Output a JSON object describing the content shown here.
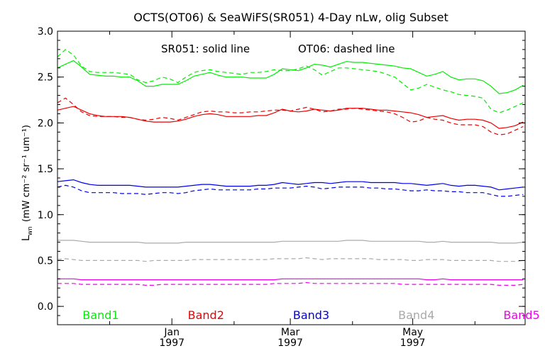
{
  "chart_data": {
    "type": "line",
    "title": "OCTS(OT06) & SeaWiFS(SR051) 4-Day nLw, olig Subset",
    "ylabel_main": "L",
    "ylabel_sub": "wn",
    "ylabel_units": "(mW cm⁻² sr⁻¹ um⁻¹)",
    "annotation_solid": "SR051: solid line",
    "annotation_dashed": "OT06: dashed line",
    "ylim": [
      -0.2,
      3.0
    ],
    "xlim": [
      "1996-11-05",
      "1997-06-26"
    ],
    "y_ticks": [
      "0.0",
      "0.5",
      "1.0",
      "1.5",
      "2.0",
      "2.5",
      "3.0"
    ],
    "x_ticks": [
      {
        "month": "Jan",
        "year": "1997",
        "date": "1997-01-01"
      },
      {
        "month": "Mar",
        "year": "1997",
        "date": "1997-03-01"
      },
      {
        "month": "May",
        "year": "1997",
        "date": "1997-05-01"
      }
    ],
    "grid": false,
    "x": [
      "1996-11-05",
      "1996-11-09",
      "1996-11-13",
      "1996-11-17",
      "1996-11-21",
      "1996-11-25",
      "1996-11-29",
      "1996-12-03",
      "1996-12-07",
      "1996-12-11",
      "1996-12-15",
      "1996-12-19",
      "1996-12-23",
      "1996-12-27",
      "1996-12-31",
      "1997-01-04",
      "1997-01-08",
      "1997-01-12",
      "1997-01-16",
      "1997-01-20",
      "1997-01-24",
      "1997-01-28",
      "1997-02-01",
      "1997-02-05",
      "1997-02-09",
      "1997-02-13",
      "1997-02-17",
      "1997-02-21",
      "1997-02-25",
      "1997-03-01",
      "1997-03-05",
      "1997-03-09",
      "1997-03-13",
      "1997-03-17",
      "1997-03-21",
      "1997-03-25",
      "1997-03-29",
      "1997-04-02",
      "1997-04-06",
      "1997-04-10",
      "1997-04-14",
      "1997-04-18",
      "1997-04-22",
      "1997-04-26",
      "1997-04-30",
      "1997-05-04",
      "1997-05-08",
      "1997-05-12",
      "1997-05-16",
      "1997-05-20",
      "1997-05-24",
      "1997-05-28",
      "1997-06-01",
      "1997-06-05",
      "1997-06-09",
      "1997-06-13",
      "1997-06-17",
      "1997-06-21",
      "1997-06-25"
    ],
    "series": [
      {
        "name": "Band1",
        "color": "#00ee00",
        "style": "solid",
        "values": [
          2.6,
          2.64,
          2.68,
          2.61,
          2.53,
          2.52,
          2.51,
          2.51,
          2.5,
          2.5,
          2.46,
          2.4,
          2.4,
          2.42,
          2.42,
          2.42,
          2.46,
          2.51,
          2.53,
          2.55,
          2.52,
          2.5,
          2.5,
          2.5,
          2.49,
          2.49,
          2.49,
          2.53,
          2.59,
          2.58,
          2.57,
          2.6,
          2.64,
          2.63,
          2.61,
          2.64,
          2.67,
          2.66,
          2.66,
          2.65,
          2.64,
          2.63,
          2.62,
          2.6,
          2.59,
          2.55,
          2.51,
          2.53,
          2.56,
          2.5,
          2.47,
          2.48,
          2.48,
          2.46,
          2.4,
          2.32,
          2.33,
          2.36,
          2.41
        ]
      },
      {
        "name": "Band1",
        "color": "#00ee00",
        "style": "dashed",
        "values": [
          2.72,
          2.8,
          2.74,
          2.62,
          2.56,
          2.55,
          2.55,
          2.55,
          2.54,
          2.53,
          2.47,
          2.44,
          2.46,
          2.5,
          2.48,
          2.44,
          2.5,
          2.55,
          2.57,
          2.58,
          2.56,
          2.55,
          2.54,
          2.53,
          2.55,
          2.55,
          2.56,
          2.58,
          2.57,
          2.57,
          2.59,
          2.62,
          2.58,
          2.52,
          2.56,
          2.6,
          2.6,
          2.59,
          2.58,
          2.57,
          2.56,
          2.53,
          2.5,
          2.43,
          2.36,
          2.38,
          2.42,
          2.39,
          2.36,
          2.34,
          2.31,
          2.3,
          2.29,
          2.27,
          2.15,
          2.11,
          2.14,
          2.18,
          2.22
        ]
      },
      {
        "name": "Band2",
        "color": "#ee0000",
        "style": "solid",
        "values": [
          2.14,
          2.16,
          2.18,
          2.14,
          2.1,
          2.08,
          2.07,
          2.07,
          2.07,
          2.06,
          2.04,
          2.02,
          2.01,
          2.01,
          2.01,
          2.02,
          2.04,
          2.07,
          2.09,
          2.1,
          2.09,
          2.07,
          2.07,
          2.07,
          2.07,
          2.08,
          2.08,
          2.11,
          2.15,
          2.13,
          2.12,
          2.13,
          2.15,
          2.14,
          2.13,
          2.14,
          2.16,
          2.16,
          2.16,
          2.15,
          2.14,
          2.14,
          2.13,
          2.12,
          2.11,
          2.09,
          2.06,
          2.07,
          2.08,
          2.05,
          2.03,
          2.04,
          2.04,
          2.03,
          2.0,
          1.94,
          1.95,
          1.97,
          2.01
        ]
      },
      {
        "name": "Band2",
        "color": "#ee0000",
        "style": "dashed",
        "values": [
          2.22,
          2.27,
          2.2,
          2.12,
          2.08,
          2.07,
          2.07,
          2.07,
          2.06,
          2.06,
          2.04,
          2.03,
          2.04,
          2.06,
          2.05,
          2.03,
          2.06,
          2.09,
          2.12,
          2.13,
          2.12,
          2.12,
          2.11,
          2.11,
          2.12,
          2.12,
          2.13,
          2.14,
          2.14,
          2.13,
          2.15,
          2.17,
          2.15,
          2.12,
          2.13,
          2.15,
          2.15,
          2.16,
          2.15,
          2.14,
          2.13,
          2.12,
          2.1,
          2.06,
          2.01,
          2.02,
          2.06,
          2.04,
          2.03,
          2.0,
          1.98,
          1.98,
          1.98,
          1.96,
          1.9,
          1.87,
          1.88,
          1.92,
          1.96
        ]
      },
      {
        "name": "Band3",
        "color": "#0000ee",
        "style": "solid",
        "values": [
          1.36,
          1.37,
          1.38,
          1.35,
          1.33,
          1.32,
          1.32,
          1.32,
          1.32,
          1.32,
          1.31,
          1.3,
          1.3,
          1.3,
          1.3,
          1.3,
          1.31,
          1.32,
          1.33,
          1.33,
          1.32,
          1.31,
          1.31,
          1.31,
          1.31,
          1.32,
          1.32,
          1.33,
          1.35,
          1.34,
          1.33,
          1.34,
          1.35,
          1.35,
          1.34,
          1.35,
          1.36,
          1.36,
          1.36,
          1.35,
          1.35,
          1.35,
          1.35,
          1.34,
          1.34,
          1.33,
          1.32,
          1.33,
          1.34,
          1.32,
          1.31,
          1.32,
          1.32,
          1.31,
          1.3,
          1.27,
          1.28,
          1.29,
          1.3
        ]
      },
      {
        "name": "Band3",
        "color": "#0000ee",
        "style": "dashed",
        "values": [
          1.3,
          1.32,
          1.3,
          1.26,
          1.24,
          1.24,
          1.24,
          1.24,
          1.23,
          1.23,
          1.23,
          1.22,
          1.23,
          1.24,
          1.24,
          1.23,
          1.24,
          1.26,
          1.27,
          1.28,
          1.27,
          1.27,
          1.27,
          1.27,
          1.27,
          1.28,
          1.28,
          1.29,
          1.29,
          1.29,
          1.3,
          1.31,
          1.3,
          1.28,
          1.29,
          1.3,
          1.3,
          1.3,
          1.3,
          1.29,
          1.29,
          1.28,
          1.28,
          1.27,
          1.26,
          1.26,
          1.27,
          1.26,
          1.26,
          1.25,
          1.25,
          1.24,
          1.24,
          1.24,
          1.22,
          1.2,
          1.2,
          1.21,
          1.22
        ]
      },
      {
        "name": "Band4",
        "color": "#aaaaaa",
        "style": "solid",
        "values": [
          0.72,
          0.72,
          0.72,
          0.71,
          0.7,
          0.7,
          0.7,
          0.7,
          0.7,
          0.7,
          0.7,
          0.69,
          0.69,
          0.69,
          0.69,
          0.69,
          0.7,
          0.7,
          0.7,
          0.7,
          0.7,
          0.7,
          0.7,
          0.7,
          0.7,
          0.7,
          0.7,
          0.7,
          0.71,
          0.71,
          0.71,
          0.71,
          0.71,
          0.71,
          0.71,
          0.71,
          0.72,
          0.72,
          0.72,
          0.71,
          0.71,
          0.71,
          0.71,
          0.71,
          0.71,
          0.71,
          0.7,
          0.7,
          0.71,
          0.7,
          0.7,
          0.7,
          0.7,
          0.7,
          0.7,
          0.69,
          0.69,
          0.69,
          0.7
        ]
      },
      {
        "name": "Band4",
        "color": "#aaaaaa",
        "style": "dashed",
        "values": [
          0.51,
          0.52,
          0.51,
          0.5,
          0.5,
          0.5,
          0.5,
          0.5,
          0.5,
          0.5,
          0.5,
          0.49,
          0.5,
          0.5,
          0.5,
          0.5,
          0.5,
          0.51,
          0.51,
          0.51,
          0.51,
          0.51,
          0.51,
          0.51,
          0.51,
          0.51,
          0.51,
          0.52,
          0.52,
          0.52,
          0.52,
          0.53,
          0.52,
          0.51,
          0.52,
          0.52,
          0.52,
          0.52,
          0.52,
          0.52,
          0.51,
          0.51,
          0.51,
          0.51,
          0.5,
          0.5,
          0.51,
          0.51,
          0.51,
          0.5,
          0.5,
          0.5,
          0.5,
          0.5,
          0.5,
          0.49,
          0.49,
          0.49,
          0.5
        ]
      },
      {
        "name": "Band5",
        "color": "#ee00ee",
        "style": "solid",
        "values": [
          0.3,
          0.3,
          0.3,
          0.29,
          0.29,
          0.29,
          0.29,
          0.29,
          0.29,
          0.29,
          0.29,
          0.29,
          0.29,
          0.29,
          0.29,
          0.29,
          0.29,
          0.29,
          0.29,
          0.29,
          0.29,
          0.29,
          0.29,
          0.29,
          0.29,
          0.29,
          0.29,
          0.29,
          0.3,
          0.3,
          0.3,
          0.3,
          0.3,
          0.3,
          0.3,
          0.3,
          0.3,
          0.3,
          0.3,
          0.3,
          0.3,
          0.3,
          0.3,
          0.3,
          0.3,
          0.3,
          0.29,
          0.29,
          0.3,
          0.29,
          0.29,
          0.29,
          0.29,
          0.29,
          0.29,
          0.29,
          0.29,
          0.29,
          0.29
        ]
      },
      {
        "name": "Band5",
        "color": "#ee00ee",
        "style": "dashed",
        "values": [
          0.25,
          0.25,
          0.25,
          0.24,
          0.24,
          0.24,
          0.24,
          0.24,
          0.24,
          0.24,
          0.24,
          0.23,
          0.23,
          0.24,
          0.24,
          0.24,
          0.24,
          0.24,
          0.24,
          0.24,
          0.24,
          0.24,
          0.24,
          0.24,
          0.24,
          0.24,
          0.24,
          0.25,
          0.25,
          0.25,
          0.25,
          0.26,
          0.25,
          0.25,
          0.25,
          0.25,
          0.25,
          0.25,
          0.25,
          0.25,
          0.25,
          0.25,
          0.25,
          0.24,
          0.24,
          0.24,
          0.24,
          0.24,
          0.24,
          0.24,
          0.24,
          0.24,
          0.24,
          0.24,
          0.24,
          0.23,
          0.23,
          0.23,
          0.24
        ]
      }
    ],
    "legend": [
      {
        "label": "Band1",
        "color": "#00ee00"
      },
      {
        "label": "Band2",
        "color": "#ee0000"
      },
      {
        "label": "Band3",
        "color": "#0000ee"
      },
      {
        "label": "Band4",
        "color": "#aaaaaa"
      },
      {
        "label": "Band5",
        "color": "#ee00ee"
      }
    ]
  }
}
